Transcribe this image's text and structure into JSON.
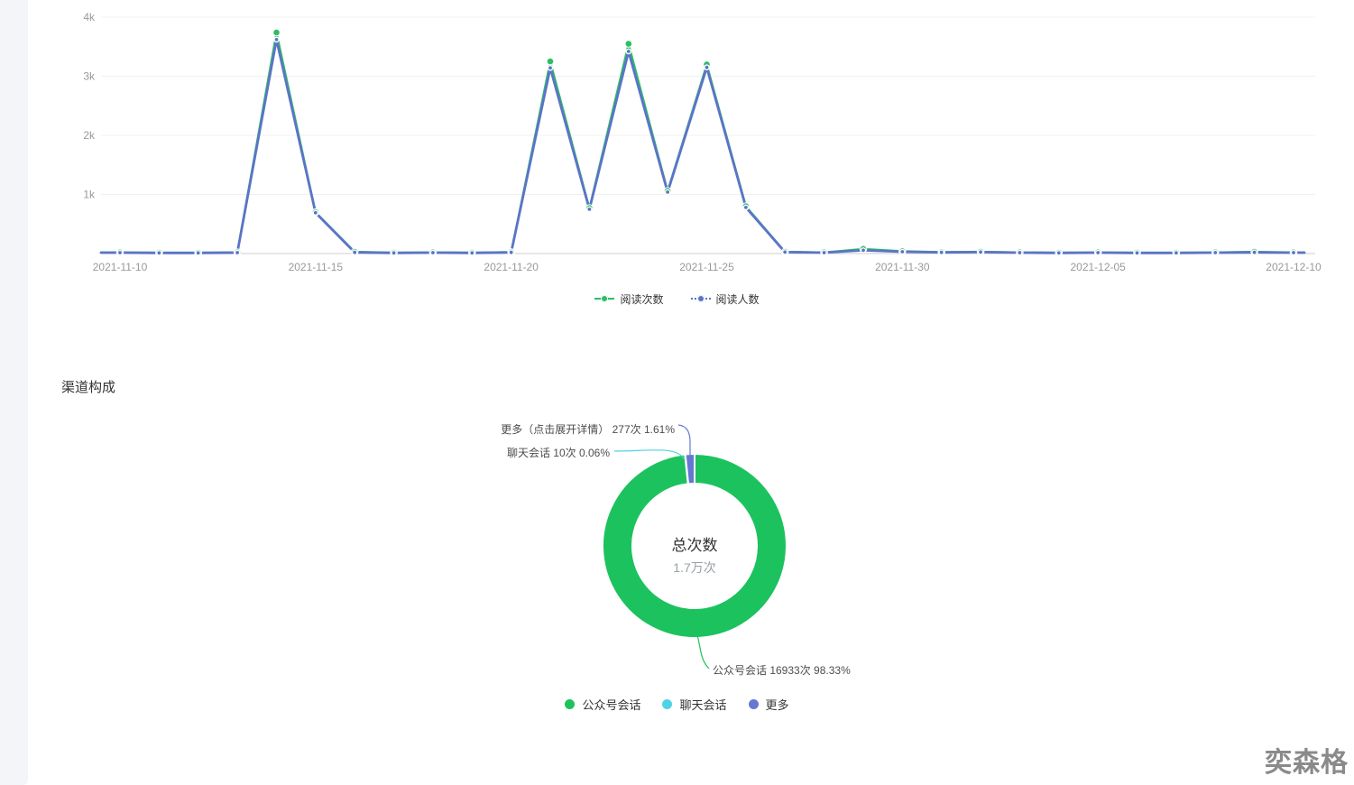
{
  "page": {
    "watermark": "奕森格"
  },
  "chart_data": [
    {
      "type": "line",
      "x": [
        "2021-11-10",
        "2021-11-11",
        "2021-11-12",
        "2021-11-13",
        "2021-11-14",
        "2021-11-15",
        "2021-11-16",
        "2021-11-17",
        "2021-11-18",
        "2021-11-19",
        "2021-11-20",
        "2021-11-21",
        "2021-11-22",
        "2021-11-23",
        "2021-11-24",
        "2021-11-25",
        "2021-11-26",
        "2021-11-27",
        "2021-11-28",
        "2021-11-29",
        "2021-11-30",
        "2021-12-01",
        "2021-12-02",
        "2021-12-03",
        "2021-12-04",
        "2021-12-05",
        "2021-12-06",
        "2021-12-07",
        "2021-12-08",
        "2021-12-09",
        "2021-12-10"
      ],
      "series": [
        {
          "name": "阅读次数",
          "color": "#2cbe64",
          "values": [
            20,
            15,
            15,
            20,
            3740,
            700,
            30,
            15,
            20,
            15,
            25,
            3250,
            770,
            3550,
            1060,
            3200,
            800,
            30,
            20,
            80,
            40,
            25,
            30,
            20,
            15,
            20,
            15,
            15,
            20,
            30,
            20
          ]
        },
        {
          "name": "阅读人数",
          "color": "#5b74c8",
          "values": [
            15,
            10,
            10,
            15,
            3620,
            690,
            20,
            10,
            15,
            10,
            20,
            3140,
            750,
            3420,
            1040,
            3150,
            780,
            25,
            15,
            55,
            30,
            20,
            25,
            15,
            10,
            15,
            10,
            10,
            15,
            20,
            15
          ]
        }
      ],
      "ylim": [
        0,
        4000
      ],
      "yticks": [
        {
          "value": 1000,
          "label": "1k"
        },
        {
          "value": 2000,
          "label": "2k"
        },
        {
          "value": 3000,
          "label": "3k"
        },
        {
          "value": 4000,
          "label": "4k"
        }
      ],
      "xtick_labels": [
        {
          "index": 0,
          "label": "2021-11-10"
        },
        {
          "index": 5,
          "label": "2021-11-15"
        },
        {
          "index": 10,
          "label": "2021-11-20"
        },
        {
          "index": 15,
          "label": "2021-11-25"
        },
        {
          "index": 20,
          "label": "2021-11-30"
        },
        {
          "index": 25,
          "label": "2021-12-05"
        },
        {
          "index": 30,
          "label": "2021-12-10"
        }
      ],
      "grid": true,
      "legend_position": "bottom"
    },
    {
      "type": "pie",
      "title": "渠道构成",
      "center_label": "总次数",
      "center_value": "1.7万次",
      "slices": [
        {
          "name": "公众号会话",
          "value": 16933,
          "unit": "次",
          "percent": 98.33,
          "color": "#1cc25e",
          "annotation": "公众号会话 16933次 98.33%"
        },
        {
          "name": "聊天会话",
          "value": 10,
          "unit": "次",
          "percent": 0.06,
          "color": "#50d2e6",
          "annotation": "聊天会话 10次 0.06%"
        },
        {
          "name": "更多",
          "value": 277,
          "unit": "次",
          "percent": 1.61,
          "color": "#6577d2",
          "annotation": "更多（点击展开详情） 277次 1.61%"
        }
      ],
      "legend_position": "bottom"
    }
  ]
}
